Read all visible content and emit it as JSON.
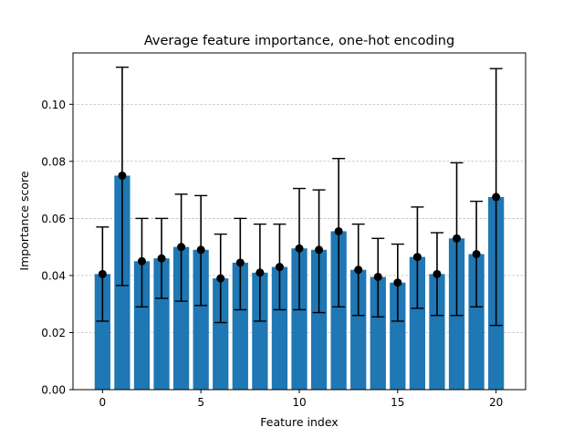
{
  "chart_data": {
    "type": "bar",
    "title": "Average feature importance, one-hot encoding",
    "xlabel": "Feature index",
    "ylabel": "Importance score",
    "x": [
      0,
      1,
      2,
      3,
      4,
      5,
      6,
      7,
      8,
      9,
      10,
      11,
      12,
      13,
      14,
      15,
      16,
      17,
      18,
      19,
      20
    ],
    "values": [
      0.0405,
      0.075,
      0.045,
      0.046,
      0.05,
      0.049,
      0.039,
      0.0445,
      0.041,
      0.043,
      0.0495,
      0.049,
      0.0555,
      0.042,
      0.0395,
      0.0375,
      0.0465,
      0.0405,
      0.053,
      0.0475,
      0.0675
    ],
    "error_low": [
      0.024,
      0.0365,
      0.029,
      0.032,
      0.031,
      0.0295,
      0.0235,
      0.028,
      0.024,
      0.028,
      0.028,
      0.027,
      0.029,
      0.026,
      0.0255,
      0.024,
      0.0285,
      0.026,
      0.026,
      0.029,
      0.0225
    ],
    "error_high": [
      0.057,
      0.113,
      0.06,
      0.06,
      0.0685,
      0.068,
      0.0545,
      0.06,
      0.058,
      0.058,
      0.0705,
      0.07,
      0.081,
      0.058,
      0.053,
      0.051,
      0.064,
      0.055,
      0.0795,
      0.066,
      0.1125
    ],
    "xlim": [
      -1.5,
      21.5
    ],
    "ylim": [
      0,
      0.118
    ],
    "xticks": [
      0,
      5,
      10,
      15,
      20
    ],
    "yticks": [
      0.0,
      0.02,
      0.04,
      0.06,
      0.08,
      0.1
    ],
    "ytick_labels": [
      "0.00",
      "0.02",
      "0.04",
      "0.06",
      "0.08",
      "0.10"
    ],
    "grid": "y-dashed",
    "colors": {
      "bar": "#1f77b4",
      "errorbar": "#000000",
      "grid": "#b0b0b0"
    }
  }
}
